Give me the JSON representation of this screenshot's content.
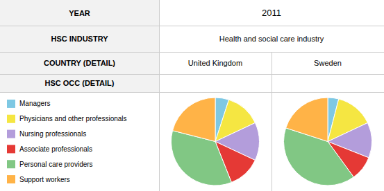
{
  "chart_data": {
    "type": "pie",
    "title": "2011",
    "subtitle": "Health and social care industry",
    "annotations": [
      "YEAR",
      "HSC INDUSTRY",
      "COUNTRY (DETAIL)",
      "HSC OCC (DETAIL)"
    ],
    "categories": [
      "Managers",
      "Physicians and other professionals",
      "Nursing professionals",
      "Associate professionals",
      "Personal care providers",
      "Support workers"
    ],
    "colors": [
      "#7ec8e3",
      "#f5e642",
      "#b39ddb",
      "#e53935",
      "#81c784",
      "#ffb347"
    ],
    "series": [
      {
        "name": "United Kingdom",
        "values": [
          5,
          13,
          14,
          12,
          35,
          21
        ]
      },
      {
        "name": "Sweden",
        "values": [
          4,
          14,
          13,
          9,
          40,
          20
        ]
      }
    ],
    "legend": "left"
  }
}
